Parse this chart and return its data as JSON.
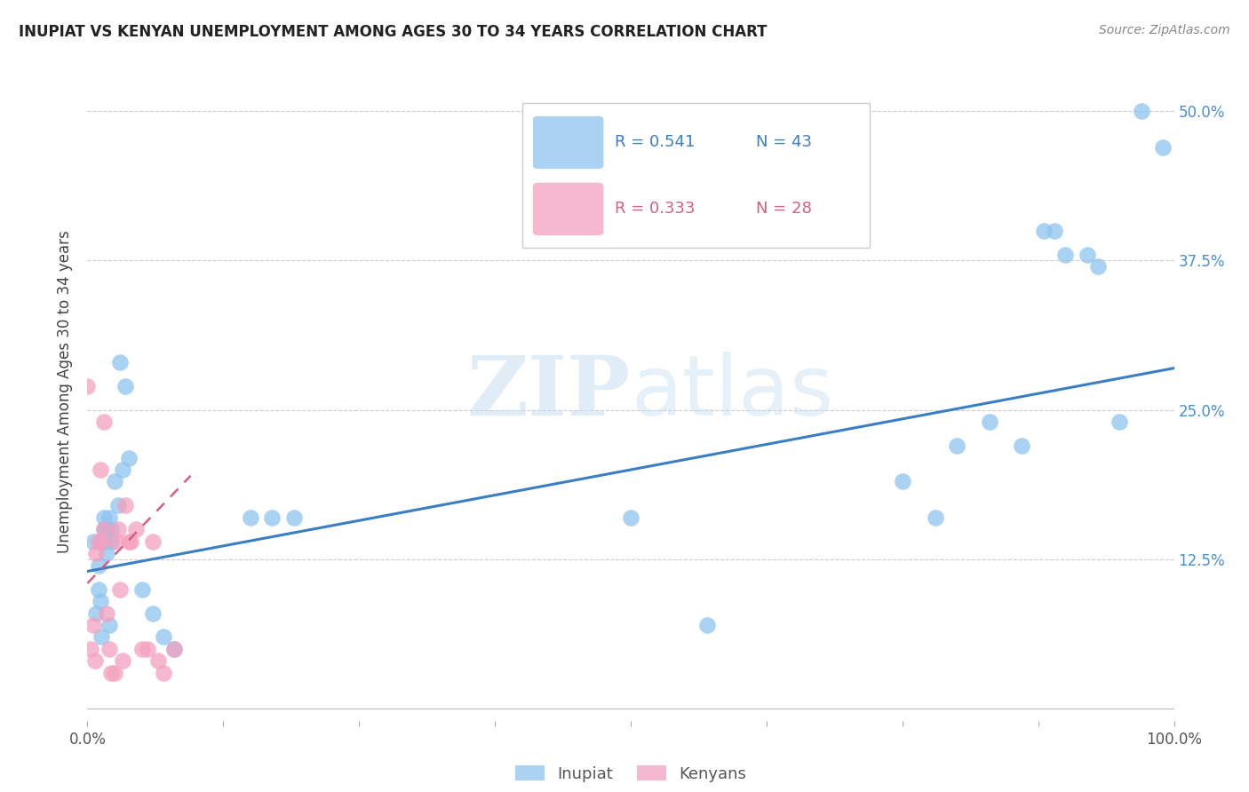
{
  "title": "INUPIAT VS KENYAN UNEMPLOYMENT AMONG AGES 30 TO 34 YEARS CORRELATION CHART",
  "source": "Source: ZipAtlas.com",
  "ylabel": "Unemployment Among Ages 30 to 34 years",
  "xlim": [
    0.0,
    1.0
  ],
  "ylim": [
    -0.01,
    0.54
  ],
  "inupiat_color": "#8EC4EE",
  "kenyan_color": "#F4A0BE",
  "inupiat_R": "0.541",
  "inupiat_N": "43",
  "kenyan_R": "0.333",
  "kenyan_N": "28",
  "watermark_zip": "ZIP",
  "watermark_atlas": "atlas",
  "inupiat_x": [
    0.005,
    0.008,
    0.01,
    0.01,
    0.012,
    0.013,
    0.015,
    0.015,
    0.015,
    0.018,
    0.018,
    0.02,
    0.02,
    0.022,
    0.022,
    0.025,
    0.028,
    0.03,
    0.032,
    0.035,
    0.038,
    0.05,
    0.06,
    0.07,
    0.08,
    0.15,
    0.17,
    0.19,
    0.5,
    0.57,
    0.75,
    0.78,
    0.8,
    0.83,
    0.86,
    0.88,
    0.89,
    0.9,
    0.92,
    0.93,
    0.95,
    0.97,
    0.99
  ],
  "inupiat_y": [
    0.14,
    0.08,
    0.12,
    0.1,
    0.09,
    0.06,
    0.16,
    0.15,
    0.14,
    0.15,
    0.13,
    0.16,
    0.07,
    0.15,
    0.14,
    0.19,
    0.17,
    0.29,
    0.2,
    0.27,
    0.21,
    0.1,
    0.08,
    0.06,
    0.05,
    0.16,
    0.16,
    0.16,
    0.16,
    0.07,
    0.19,
    0.16,
    0.22,
    0.24,
    0.22,
    0.4,
    0.4,
    0.38,
    0.38,
    0.37,
    0.24,
    0.5,
    0.47
  ],
  "kenyan_x": [
    0.0,
    0.003,
    0.005,
    0.007,
    0.008,
    0.01,
    0.012,
    0.013,
    0.015,
    0.015,
    0.018,
    0.02,
    0.022,
    0.025,
    0.027,
    0.028,
    0.03,
    0.032,
    0.035,
    0.038,
    0.04,
    0.045,
    0.05,
    0.055,
    0.06,
    0.065,
    0.07,
    0.08
  ],
  "kenyan_y": [
    0.27,
    0.05,
    0.07,
    0.04,
    0.13,
    0.14,
    0.2,
    0.14,
    0.24,
    0.15,
    0.08,
    0.05,
    0.03,
    0.03,
    0.14,
    0.15,
    0.1,
    0.04,
    0.17,
    0.14,
    0.14,
    0.15,
    0.05,
    0.05,
    0.14,
    0.04,
    0.03,
    0.05
  ],
  "inupiat_line_x": [
    0.0,
    1.0
  ],
  "inupiat_line_y": [
    0.115,
    0.285
  ],
  "kenyan_line_x": [
    0.0,
    0.095
  ],
  "kenyan_line_y": [
    0.105,
    0.195
  ]
}
